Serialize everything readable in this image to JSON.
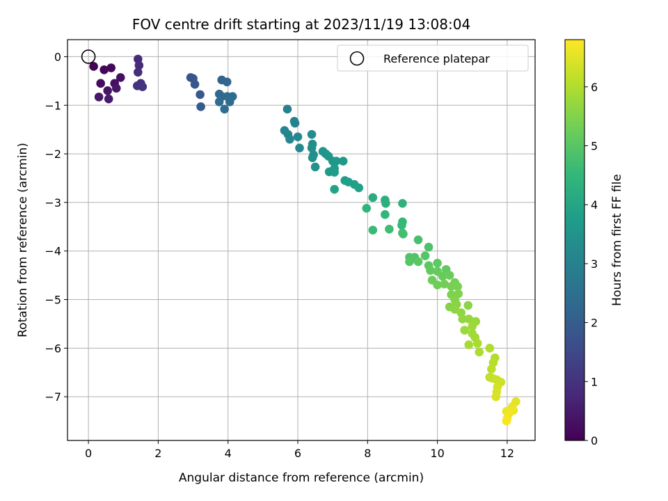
{
  "chart_data": {
    "type": "scatter",
    "title": "FOV centre drift starting at 2023/11/19 13:08:04",
    "xlabel": "Angular distance from reference (arcmin)",
    "ylabel": "Rotation from reference (arcmin)",
    "xlim": [
      -0.6,
      12.8
    ],
    "ylim": [
      -7.9,
      0.35
    ],
    "xticks": [
      0,
      2,
      4,
      6,
      8,
      10,
      12
    ],
    "yticks": [
      0,
      -1,
      -2,
      -3,
      -4,
      -5,
      -6,
      -7
    ],
    "grid": true,
    "colorbar": {
      "label": "Hours from first FF file",
      "range": [
        0,
        6.8
      ],
      "ticks": [
        0,
        1,
        2,
        3,
        4,
        5,
        6
      ],
      "colormap": "viridis"
    },
    "legend": {
      "position": "top-right",
      "entries": [
        "Reference platepar"
      ]
    },
    "reference_point": {
      "x": 0,
      "y": 0
    },
    "series": [
      {
        "name": "FOV centre drift",
        "points": [
          [
            0.15,
            -0.2,
            0.05
          ],
          [
            0.45,
            -0.27,
            0.1
          ],
          [
            0.65,
            -0.23,
            0.15
          ],
          [
            0.35,
            -0.55,
            0.2
          ],
          [
            0.75,
            -0.55,
            0.25
          ],
          [
            0.92,
            -0.43,
            0.3
          ],
          [
            0.55,
            -0.7,
            0.35
          ],
          [
            0.8,
            -0.65,
            0.4
          ],
          [
            0.3,
            -0.83,
            0.45
          ],
          [
            0.58,
            -0.87,
            0.5
          ],
          [
            1.42,
            -0.05,
            0.8
          ],
          [
            1.45,
            -0.18,
            0.85
          ],
          [
            1.42,
            -0.32,
            0.9
          ],
          [
            1.5,
            -0.55,
            0.95
          ],
          [
            1.4,
            -0.6,
            1.0
          ],
          [
            1.55,
            -0.62,
            1.05
          ],
          [
            2.93,
            -0.43,
            1.8
          ],
          [
            3.0,
            -0.45,
            1.83
          ],
          [
            3.05,
            -0.57,
            1.86
          ],
          [
            3.2,
            -0.78,
            1.9
          ],
          [
            3.22,
            -1.03,
            1.93
          ],
          [
            3.82,
            -0.48,
            2.2
          ],
          [
            3.97,
            -0.52,
            2.23
          ],
          [
            3.75,
            -0.77,
            2.26
          ],
          [
            3.82,
            -0.82,
            2.29
          ],
          [
            3.98,
            -0.82,
            2.32
          ],
          [
            4.13,
            -0.82,
            2.35
          ],
          [
            3.75,
            -0.93,
            2.38
          ],
          [
            4.05,
            -0.93,
            2.41
          ],
          [
            3.9,
            -1.08,
            2.44
          ],
          [
            5.7,
            -1.08,
            3.0
          ],
          [
            5.9,
            -1.33,
            3.03
          ],
          [
            5.92,
            -1.37,
            3.06
          ],
          [
            5.62,
            -1.52,
            3.09
          ],
          [
            5.72,
            -1.6,
            3.12
          ],
          [
            5.77,
            -1.7,
            3.15
          ],
          [
            6.0,
            -1.65,
            3.18
          ],
          [
            6.05,
            -1.88,
            3.21
          ],
          [
            6.4,
            -1.6,
            3.3
          ],
          [
            6.42,
            -1.8,
            3.33
          ],
          [
            6.4,
            -1.88,
            3.36
          ],
          [
            6.45,
            -2.02,
            3.39
          ],
          [
            6.42,
            -2.08,
            3.42
          ],
          [
            6.5,
            -2.27,
            3.45
          ],
          [
            6.72,
            -1.95,
            3.5
          ],
          [
            6.8,
            -2.0,
            3.53
          ],
          [
            6.88,
            -2.05,
            3.56
          ],
          [
            7.0,
            -2.15,
            3.59
          ],
          [
            7.1,
            -2.15,
            3.62
          ],
          [
            7.3,
            -2.15,
            3.65
          ],
          [
            7.05,
            -2.3,
            3.68
          ],
          [
            6.9,
            -2.37,
            3.71
          ],
          [
            7.05,
            -2.38,
            3.74
          ],
          [
            7.35,
            -2.55,
            3.77
          ],
          [
            7.45,
            -2.58,
            3.8
          ],
          [
            7.62,
            -2.63,
            3.83
          ],
          [
            7.75,
            -2.7,
            3.86
          ],
          [
            7.05,
            -2.73,
            3.89
          ],
          [
            8.15,
            -2.9,
            4.2
          ],
          [
            8.5,
            -2.95,
            4.25
          ],
          [
            8.52,
            -3.02,
            4.3
          ],
          [
            9.0,
            -3.02,
            4.35
          ],
          [
            7.97,
            -3.12,
            4.4
          ],
          [
            8.5,
            -3.25,
            4.45
          ],
          [
            9.0,
            -3.4,
            4.5
          ],
          [
            8.98,
            -3.47,
            4.55
          ],
          [
            8.15,
            -3.57,
            4.6
          ],
          [
            8.62,
            -3.55,
            4.65
          ],
          [
            9.0,
            -3.63,
            4.7
          ],
          [
            9.02,
            -3.65,
            4.75
          ],
          [
            9.45,
            -3.77,
            4.8
          ],
          [
            9.75,
            -3.92,
            4.85
          ],
          [
            9.2,
            -4.13,
            4.9
          ],
          [
            9.35,
            -4.13,
            4.93
          ],
          [
            9.65,
            -4.1,
            4.96
          ],
          [
            9.2,
            -4.22,
            4.99
          ],
          [
            9.45,
            -4.22,
            5.02
          ],
          [
            9.75,
            -4.3,
            5.05
          ],
          [
            10.0,
            -4.25,
            5.08
          ],
          [
            10.25,
            -4.38,
            5.11
          ],
          [
            9.8,
            -4.4,
            5.14
          ],
          [
            10.0,
            -4.42,
            5.17
          ],
          [
            10.15,
            -4.52,
            5.2
          ],
          [
            10.35,
            -4.5,
            5.23
          ],
          [
            9.85,
            -4.6,
            5.26
          ],
          [
            10.0,
            -4.7,
            5.29
          ],
          [
            10.2,
            -4.68,
            5.32
          ],
          [
            10.5,
            -4.65,
            5.35
          ],
          [
            10.4,
            -4.73,
            5.38
          ],
          [
            10.58,
            -4.73,
            5.41
          ],
          [
            10.4,
            -4.9,
            5.44
          ],
          [
            10.6,
            -4.88,
            5.47
          ],
          [
            10.5,
            -5.0,
            5.5
          ],
          [
            10.35,
            -5.15,
            5.53
          ],
          [
            10.55,
            -5.1,
            5.56
          ],
          [
            10.88,
            -5.12,
            5.59
          ],
          [
            10.5,
            -5.2,
            5.62
          ],
          [
            10.68,
            -5.27,
            5.65
          ],
          [
            10.72,
            -5.4,
            5.68
          ],
          [
            10.9,
            -5.4,
            5.71
          ],
          [
            11.1,
            -5.45,
            5.74
          ],
          [
            10.78,
            -5.63,
            5.77
          ],
          [
            11.0,
            -5.55,
            5.8
          ],
          [
            11.0,
            -5.7,
            5.83
          ],
          [
            11.08,
            -5.78,
            5.86
          ],
          [
            10.9,
            -5.93,
            5.89
          ],
          [
            11.15,
            -5.9,
            5.92
          ],
          [
            11.2,
            -6.08,
            5.95
          ],
          [
            11.5,
            -6.0,
            5.98
          ],
          [
            11.65,
            -6.2,
            6.0
          ],
          [
            11.6,
            -6.3,
            6.05
          ],
          [
            11.55,
            -6.43,
            6.1
          ],
          [
            11.5,
            -6.6,
            6.15
          ],
          [
            11.58,
            -6.62,
            6.2
          ],
          [
            11.7,
            -6.65,
            6.25
          ],
          [
            11.82,
            -6.7,
            6.3
          ],
          [
            11.72,
            -6.8,
            6.35
          ],
          [
            11.7,
            -6.9,
            6.38
          ],
          [
            11.68,
            -7.0,
            6.42
          ],
          [
            12.25,
            -7.1,
            6.5
          ],
          [
            12.15,
            -7.2,
            6.55
          ],
          [
            11.98,
            -7.3,
            6.6
          ],
          [
            12.18,
            -7.28,
            6.63
          ],
          [
            12.05,
            -7.35,
            6.66
          ],
          [
            12.0,
            -7.45,
            6.7
          ],
          [
            11.98,
            -7.5,
            6.75
          ]
        ]
      }
    ]
  },
  "style": {
    "grid_color": "#b0b0b0",
    "viridis_stops": [
      "#440154",
      "#482878",
      "#3e4989",
      "#31688e",
      "#26828e",
      "#1f9e89",
      "#35b779",
      "#6ece58",
      "#b5de2b",
      "#fde725"
    ]
  }
}
